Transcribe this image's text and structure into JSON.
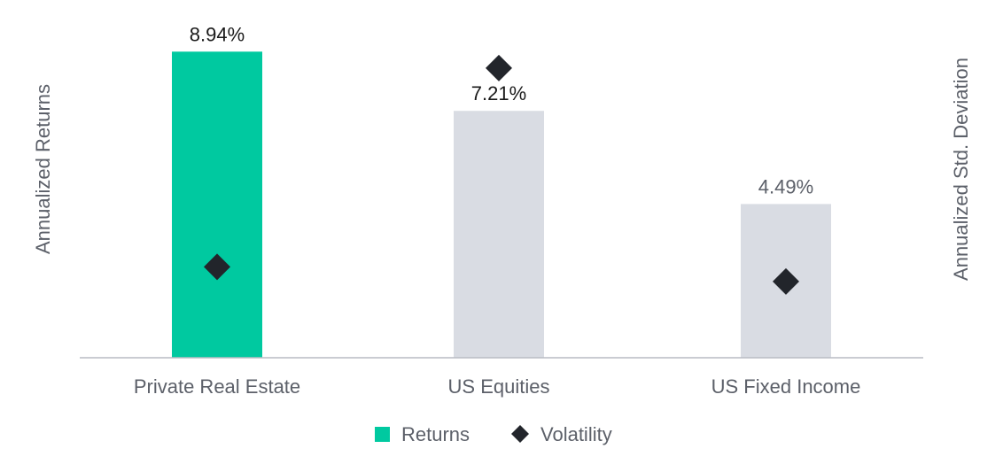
{
  "chart_data": {
    "type": "bar",
    "categories": [
      "Private Real Estate",
      "US Equities",
      "US Fixed Income"
    ],
    "series": [
      {
        "name": "Returns",
        "kind": "bar",
        "axis": "left",
        "values": [
          8.94,
          7.21,
          4.49
        ],
        "labels": [
          "8.94%",
          "7.21%",
          "4.49%"
        ],
        "colors": [
          "#00c9a0",
          "#d9dce3",
          "#d9dce3"
        ],
        "label_colors": [
          "#1a1a1a",
          "#1a1a1a",
          "#5c6069"
        ]
      },
      {
        "name": "Volatility",
        "kind": "marker",
        "marker": "diamond",
        "axis": "right",
        "values": [
          5.9,
          18.8,
          4.95
        ],
        "color": "#22252b"
      }
    ],
    "ylabel": "Annualized Returns",
    "y2label": "Annualized Std. Deviation",
    "ylim": [
      0,
      9
    ],
    "y2lim": [
      0,
      20
    ],
    "grid": false,
    "legend": {
      "position": "bottom-center",
      "items": [
        {
          "label": "Returns",
          "symbol": "square",
          "color": "#00c9a0"
        },
        {
          "label": "Volatility",
          "symbol": "diamond",
          "color": "#22252b"
        }
      ]
    }
  }
}
